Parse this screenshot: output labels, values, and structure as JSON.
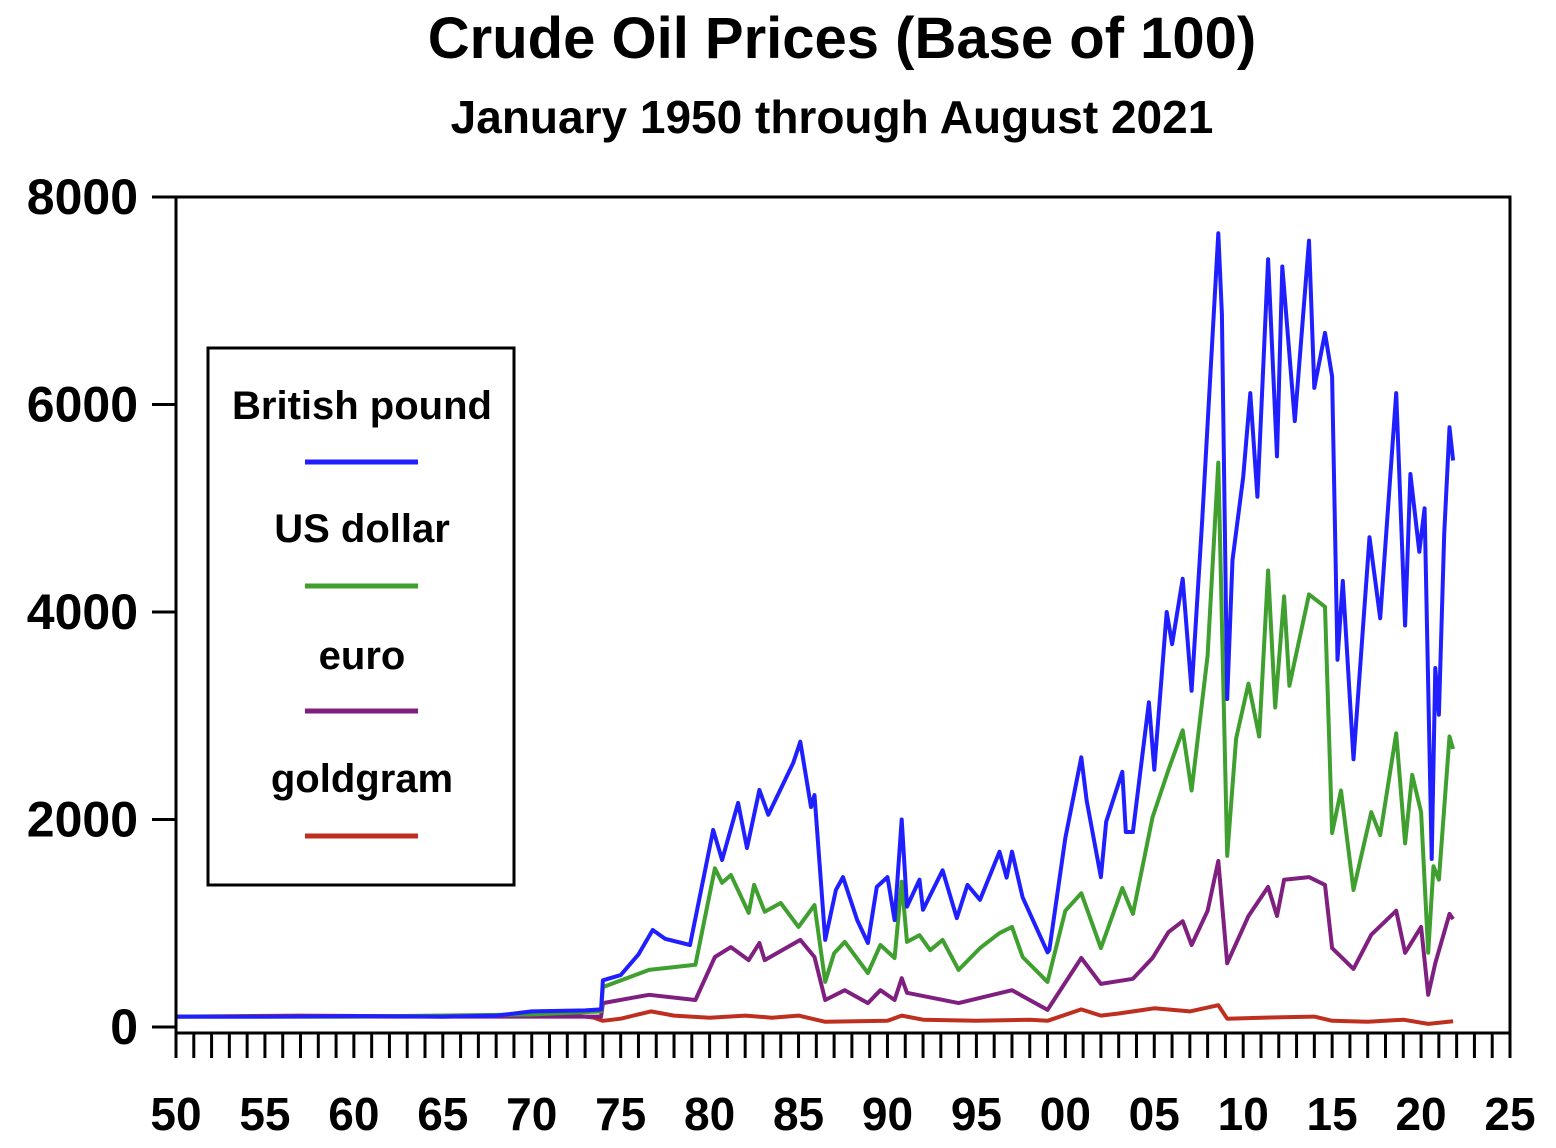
{
  "chart_data": {
    "type": "line",
    "title": "Crude Oil Prices (Base of 100)",
    "subtitle": "January 1950 through August 2021",
    "xlabel": "",
    "ylabel": "",
    "xlim": [
      1950,
      2025
    ],
    "ylim": [
      0,
      8000
    ],
    "x_tick_labels": [
      "50",
      "55",
      "60",
      "65",
      "70",
      "75",
      "80",
      "85",
      "90",
      "95",
      "00",
      "05",
      "10",
      "15",
      "20",
      "25"
    ],
    "x_tick_values": [
      1950,
      1955,
      1960,
      1965,
      1970,
      1975,
      1980,
      1985,
      1990,
      1995,
      2000,
      2005,
      2010,
      2015,
      2020,
      2025
    ],
    "y_tick_labels": [
      "0",
      "2000",
      "4000",
      "6000",
      "8000"
    ],
    "y_tick_values": [
      0,
      2000,
      4000,
      6000,
      8000
    ],
    "grid": false,
    "legend_placement": "left",
    "series": [
      {
        "name": "British pound",
        "color": "#1f1fff",
        "points": [
          [
            1950,
            100
          ],
          [
            1955,
            100
          ],
          [
            1960,
            105
          ],
          [
            1965,
            100
          ],
          [
            1968,
            110
          ],
          [
            1970,
            150
          ],
          [
            1973,
            160
          ],
          [
            1973.9,
            170
          ],
          [
            1974,
            450
          ],
          [
            1975,
            500
          ],
          [
            1976,
            700
          ],
          [
            1976.8,
            935
          ],
          [
            1977.5,
            850
          ],
          [
            1978.9,
            790
          ],
          [
            1979.5,
            1300
          ],
          [
            1980.2,
            1900
          ],
          [
            1980.7,
            1610
          ],
          [
            1981.6,
            2160
          ],
          [
            1982.1,
            1725
          ],
          [
            1982.8,
            2285
          ],
          [
            1983.3,
            2045
          ],
          [
            1984.7,
            2545
          ],
          [
            1985.1,
            2750
          ],
          [
            1985.7,
            2120
          ],
          [
            1985.9,
            2235
          ],
          [
            1986.5,
            840
          ],
          [
            1987.1,
            1320
          ],
          [
            1987.5,
            1445
          ],
          [
            1988.3,
            1030
          ],
          [
            1988.9,
            810
          ],
          [
            1989.4,
            1350
          ],
          [
            1990,
            1445
          ],
          [
            1990.4,
            1030
          ],
          [
            1990.8,
            2000
          ],
          [
            1991.1,
            1160
          ],
          [
            1991.8,
            1420
          ],
          [
            1992,
            1130
          ],
          [
            1993.1,
            1510
          ],
          [
            1993.9,
            1050
          ],
          [
            1994.5,
            1370
          ],
          [
            1995.2,
            1225
          ],
          [
            1996.3,
            1690
          ],
          [
            1996.7,
            1440
          ],
          [
            1997,
            1690
          ],
          [
            1997.6,
            1250
          ],
          [
            1999,
            720
          ],
          [
            1999.1,
            740
          ],
          [
            2000,
            1820
          ],
          [
            2000.9,
            2600
          ],
          [
            2001.2,
            2180
          ],
          [
            2002,
            1445
          ],
          [
            2002.3,
            1980
          ],
          [
            2003.2,
            2460
          ],
          [
            2003.4,
            1880
          ],
          [
            2003.8,
            1880
          ],
          [
            2004.7,
            3130
          ],
          [
            2005,
            2480
          ],
          [
            2005.7,
            4000
          ],
          [
            2006,
            3690
          ],
          [
            2006.6,
            4320
          ],
          [
            2007.1,
            3240
          ],
          [
            2007.7,
            4900
          ],
          [
            2008.6,
            7650
          ],
          [
            2008.8,
            6870
          ],
          [
            2009.1,
            3160
          ],
          [
            2009.4,
            4500
          ],
          [
            2010,
            5300
          ],
          [
            2010.4,
            6110
          ],
          [
            2010.8,
            5110
          ],
          [
            2011.4,
            7400
          ],
          [
            2011.9,
            5500
          ],
          [
            2012.2,
            7330
          ],
          [
            2012.9,
            5840
          ],
          [
            2013.7,
            7580
          ],
          [
            2014,
            6160
          ],
          [
            2014.6,
            6690
          ],
          [
            2015,
            6270
          ],
          [
            2015.3,
            3540
          ],
          [
            2015.6,
            4300
          ],
          [
            2016.2,
            2580
          ],
          [
            2017.1,
            4720
          ],
          [
            2017.7,
            3940
          ],
          [
            2018.6,
            6110
          ],
          [
            2019.1,
            3870
          ],
          [
            2019.4,
            5330
          ],
          [
            2019.9,
            4580
          ],
          [
            2020.2,
            5000
          ],
          [
            2020.6,
            1620
          ],
          [
            2020.8,
            3460
          ],
          [
            2021,
            3010
          ],
          [
            2021.3,
            4750
          ],
          [
            2021.6,
            5780
          ],
          [
            2021.8,
            5460
          ]
        ]
      },
      {
        "name": "US dollar",
        "color": "#3f9f2f",
        "points": [
          [
            1950,
            100
          ],
          [
            1960,
            100
          ],
          [
            1970,
            120
          ],
          [
            1973.9,
            150
          ],
          [
            1974,
            385
          ],
          [
            1976.6,
            550
          ],
          [
            1979.2,
            600
          ],
          [
            1980.3,
            1530
          ],
          [
            1980.7,
            1390
          ],
          [
            1981.2,
            1465
          ],
          [
            1982.2,
            1100
          ],
          [
            1982.5,
            1370
          ],
          [
            1983.1,
            1110
          ],
          [
            1984,
            1195
          ],
          [
            1985,
            965
          ],
          [
            1985.9,
            1175
          ],
          [
            1986.5,
            435
          ],
          [
            1987,
            710
          ],
          [
            1987.6,
            820
          ],
          [
            1988.9,
            520
          ],
          [
            1989.6,
            790
          ],
          [
            1990.4,
            665
          ],
          [
            1990.8,
            1400
          ],
          [
            1991.1,
            820
          ],
          [
            1991.8,
            885
          ],
          [
            1992.4,
            740
          ],
          [
            1993.1,
            840
          ],
          [
            1994,
            550
          ],
          [
            1995.2,
            760
          ],
          [
            1996.3,
            905
          ],
          [
            1997,
            965
          ],
          [
            1997.6,
            675
          ],
          [
            1999,
            435
          ],
          [
            2000,
            1120
          ],
          [
            2000.9,
            1290
          ],
          [
            2002,
            760
          ],
          [
            2003.2,
            1340
          ],
          [
            2003.8,
            1090
          ],
          [
            2004.9,
            2020
          ],
          [
            2005.8,
            2480
          ],
          [
            2006.6,
            2860
          ],
          [
            2007.1,
            2280
          ],
          [
            2008,
            3580
          ],
          [
            2008.6,
            5440
          ],
          [
            2009.1,
            1650
          ],
          [
            2009.6,
            2780
          ],
          [
            2010.3,
            3310
          ],
          [
            2010.9,
            2800
          ],
          [
            2011.4,
            4400
          ],
          [
            2011.8,
            3080
          ],
          [
            2012.3,
            4150
          ],
          [
            2012.6,
            3290
          ],
          [
            2013.7,
            4170
          ],
          [
            2014.6,
            4050
          ],
          [
            2015,
            1870
          ],
          [
            2015.5,
            2280
          ],
          [
            2016.2,
            1320
          ],
          [
            2017.2,
            2070
          ],
          [
            2017.7,
            1850
          ],
          [
            2018.6,
            2830
          ],
          [
            2019.1,
            1770
          ],
          [
            2019.5,
            2430
          ],
          [
            2020,
            2070
          ],
          [
            2020.4,
            715
          ],
          [
            2020.7,
            1550
          ],
          [
            2021,
            1420
          ],
          [
            2021.6,
            2800
          ],
          [
            2021.8,
            2680
          ]
        ]
      },
      {
        "name": "euro",
        "color": "#7f1f7f",
        "points": [
          [
            1950,
            100
          ],
          [
            1973.9,
            100
          ],
          [
            1974,
            230
          ],
          [
            1976.6,
            310
          ],
          [
            1979.2,
            260
          ],
          [
            1980.3,
            675
          ],
          [
            1981.2,
            770
          ],
          [
            1982.2,
            645
          ],
          [
            1982.8,
            810
          ],
          [
            1983.1,
            645
          ],
          [
            1985.1,
            840
          ],
          [
            1985.9,
            675
          ],
          [
            1986.5,
            260
          ],
          [
            1987.6,
            355
          ],
          [
            1988.9,
            230
          ],
          [
            1989.6,
            355
          ],
          [
            1990.4,
            260
          ],
          [
            1990.8,
            470
          ],
          [
            1991.1,
            330
          ],
          [
            1994,
            230
          ],
          [
            1997,
            355
          ],
          [
            1999,
            165
          ],
          [
            2000.9,
            665
          ],
          [
            2002,
            415
          ],
          [
            2003.8,
            465
          ],
          [
            2004.9,
            665
          ],
          [
            2005.8,
            915
          ],
          [
            2006.6,
            1020
          ],
          [
            2007.1,
            790
          ],
          [
            2008,
            1120
          ],
          [
            2008.6,
            1600
          ],
          [
            2009.1,
            615
          ],
          [
            2010.3,
            1070
          ],
          [
            2011.4,
            1350
          ],
          [
            2011.9,
            1070
          ],
          [
            2012.3,
            1420
          ],
          [
            2013.7,
            1445
          ],
          [
            2014.6,
            1370
          ],
          [
            2015,
            760
          ],
          [
            2016.2,
            560
          ],
          [
            2017.2,
            890
          ],
          [
            2018.6,
            1120
          ],
          [
            2019.1,
            715
          ],
          [
            2020,
            965
          ],
          [
            2020.4,
            310
          ],
          [
            2020.8,
            615
          ],
          [
            2021.6,
            1090
          ],
          [
            2021.8,
            1040
          ]
        ]
      },
      {
        "name": "goldgram",
        "color": "#bf2f1f",
        "points": [
          [
            1950,
            100
          ],
          [
            1957,
            110
          ],
          [
            1965,
            100
          ],
          [
            1970,
            110
          ],
          [
            1972,
            120
          ],
          [
            1973.5,
            90
          ],
          [
            1974,
            60
          ],
          [
            1975,
            80
          ],
          [
            1976.7,
            150
          ],
          [
            1978,
            110
          ],
          [
            1980,
            90
          ],
          [
            1982,
            110
          ],
          [
            1983.5,
            90
          ],
          [
            1985,
            110
          ],
          [
            1986.5,
            50
          ],
          [
            1990,
            60
          ],
          [
            1990.8,
            110
          ],
          [
            1992,
            70
          ],
          [
            1995,
            60
          ],
          [
            1998,
            70
          ],
          [
            1999,
            60
          ],
          [
            2000.9,
            170
          ],
          [
            2002,
            110
          ],
          [
            2003,
            130
          ],
          [
            2005,
            180
          ],
          [
            2007,
            150
          ],
          [
            2008.6,
            210
          ],
          [
            2009.1,
            80
          ],
          [
            2011,
            90
          ],
          [
            2014,
            100
          ],
          [
            2015,
            60
          ],
          [
            2017,
            50
          ],
          [
            2019,
            70
          ],
          [
            2020.4,
            30
          ],
          [
            2021.8,
            55
          ]
        ]
      }
    ]
  }
}
